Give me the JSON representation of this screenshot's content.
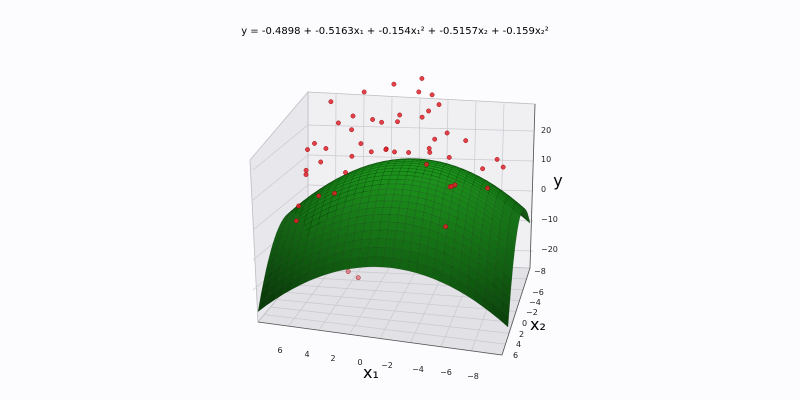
{
  "chart_data": {
    "type": "surface-3d",
    "title": "y = -0.4898 + -0.5163x₁ + -0.154x₁² + -0.5157x₂ + -0.159x₂²",
    "xlabel": "x₁",
    "ylabel": "x₂",
    "zlabel": "y",
    "surface": {
      "intercept": -0.4898,
      "b_x1": -0.5163,
      "b_x1_sq": -0.154,
      "b_x2": -0.5157,
      "b_x2_sq": -0.159,
      "color": "#1f8a1f"
    },
    "x1_ticks": [
      "6",
      "4",
      "2",
      "0",
      "−2",
      "−4",
      "−6",
      "−8"
    ],
    "x2_ticks": [
      "−8",
      "−6",
      "−4",
      "−2",
      "0",
      "2",
      "4",
      "6"
    ],
    "z_ticks": [
      "20",
      "10",
      "0",
      "−10",
      "−20"
    ],
    "scatter_color": "#e0202a",
    "grid": true
  }
}
